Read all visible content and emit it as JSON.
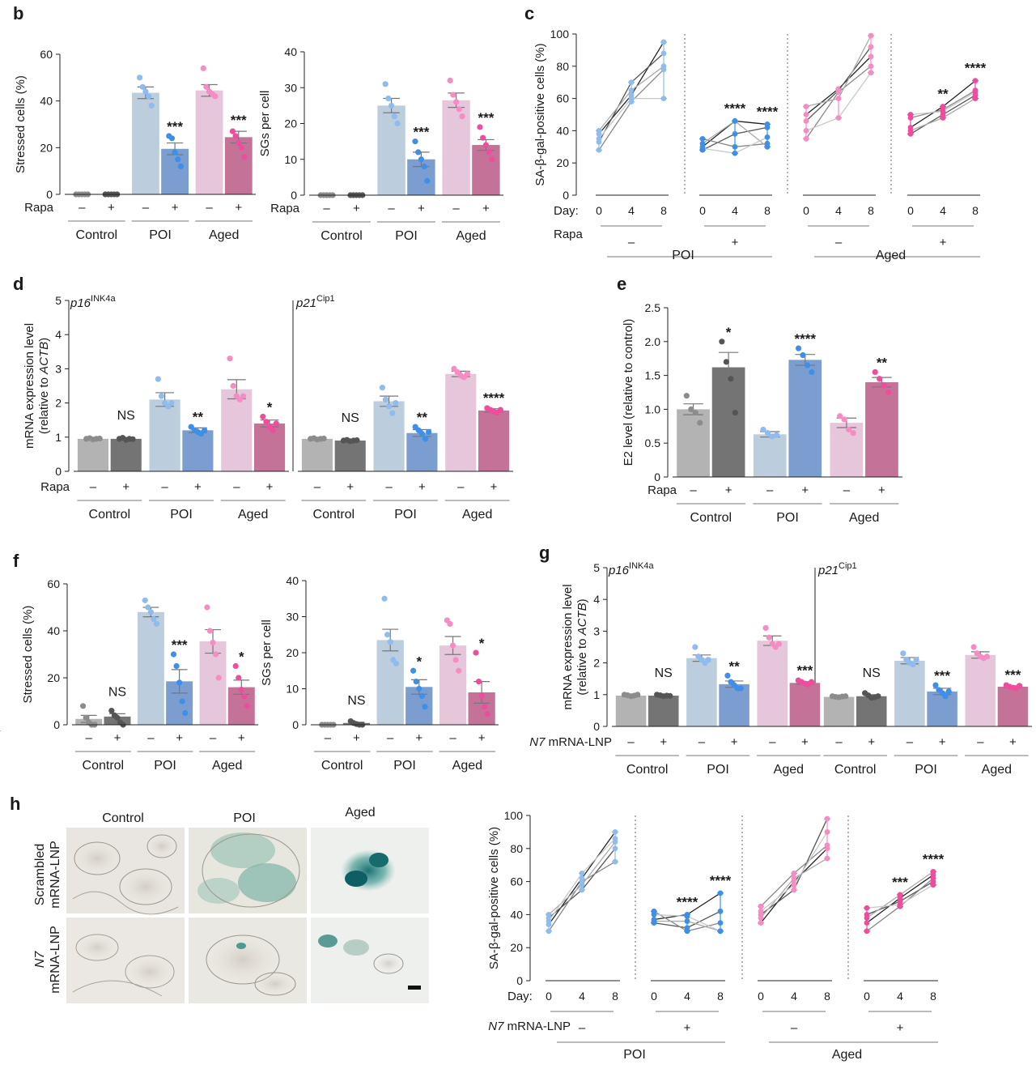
{
  "colors": {
    "ctrl_off": "#b3b3b3",
    "ctrl_on": "#747474",
    "poi_off": "#bccddd",
    "poi_on": "#7b9dcf",
    "aged_off": "#e6c6da",
    "aged_on": "#c47297",
    "dot_ctrl_off": "#8c8c8c",
    "dot_ctrl_on": "#555555",
    "dot_poi_off": "#8fbcec",
    "dot_poi_on": "#3d8fe8",
    "dot_aged_off": "#f58cc3",
    "dot_aged_on": "#ee4d9e"
  },
  "common": {
    "rapa": "Rapa",
    "minus": "–",
    "plus": "+",
    "control": "Control",
    "poi": "POI",
    "aged": "Aged",
    "day": "Day:",
    "n7": "N7",
    "mrna_lnp": "mRNA-LNP",
    "n7_full_rest": " mRNA-LNP"
  },
  "panels": {
    "b": "b",
    "c": "c",
    "d": "d",
    "e": "e",
    "f": "f",
    "g": "g",
    "h": "h"
  },
  "panel_h": {
    "col_control": "Control",
    "col_poi": "POI",
    "col_aged": "Aged",
    "row1_a": "Scrambled",
    "row1_b": "mRNA-LNP",
    "row2_a": "N7",
    "row2_b": "mRNA-LNP"
  },
  "chart_data": [
    {
      "id": "b1",
      "type": "bar",
      "ylabel": "Stressed cells (%)",
      "ylim": [
        0,
        60
      ],
      "yticks": [
        0,
        20,
        40,
        60
      ],
      "treatment": "Rapa",
      "categories": [
        "Control –",
        "Control +",
        "POI –",
        "POI +",
        "Aged –",
        "Aged +"
      ],
      "values": [
        0,
        0,
        43.5,
        19.5,
        44.5,
        24.5
      ],
      "errors": [
        0,
        0,
        2.5,
        2.5,
        2.5,
        2.5
      ],
      "points": [
        [
          0,
          0,
          0,
          0,
          0
        ],
        [
          0,
          0,
          0,
          0,
          0
        ],
        [
          50,
          46,
          44,
          42,
          38
        ],
        [
          25,
          24,
          18,
          15,
          12
        ],
        [
          54,
          46,
          44,
          43,
          42
        ],
        [
          27,
          25,
          22,
          20,
          16
        ]
      ],
      "significance": [
        "",
        "",
        "",
        "***",
        "",
        "***"
      ]
    },
    {
      "id": "b2",
      "type": "bar",
      "ylabel": "SGs per cell",
      "ylim": [
        0,
        40
      ],
      "yticks": [
        0,
        10,
        20,
        30,
        40
      ],
      "treatment": "Rapa",
      "categories": [
        "Control –",
        "Control +",
        "POI –",
        "POI +",
        "Aged –",
        "Aged +"
      ],
      "values": [
        0,
        0,
        25,
        10,
        26.5,
        14
      ],
      "errors": [
        0,
        0,
        2,
        2,
        2,
        1.5
      ],
      "points": [
        [
          0,
          0,
          0,
          0,
          0
        ],
        [
          0,
          0,
          0,
          0,
          0
        ],
        [
          31,
          27,
          25,
          22,
          20
        ],
        [
          15,
          12,
          10,
          8,
          4
        ],
        [
          32,
          28,
          26,
          24,
          22
        ],
        [
          19,
          16,
          14,
          12,
          10
        ]
      ],
      "significance": [
        "",
        "",
        "",
        "***",
        "",
        "***"
      ]
    },
    {
      "id": "c",
      "type": "line",
      "ylabel": "SA-β-gal-positive cells (%)",
      "ylim": [
        0,
        100
      ],
      "yticks": [
        0,
        20,
        40,
        60,
        80,
        100
      ],
      "x": [
        0,
        4,
        8
      ],
      "treatment": "Rapa",
      "groups": [
        {
          "name": "POI –",
          "series": [
            [
              38,
              62,
              95
            ],
            [
              33,
              70,
              88
            ],
            [
              28,
              58,
              78
            ],
            [
              40,
              65,
              80
            ],
            [
              35,
              60,
              60
            ]
          ],
          "significance": [
            "",
            "",
            ""
          ]
        },
        {
          "name": "POI +",
          "series": [
            [
              30,
              46,
              44
            ],
            [
              28,
              38,
              42
            ],
            [
              35,
              30,
              32
            ],
            [
              32,
              46,
              30
            ],
            [
              29,
              26,
              36
            ]
          ],
          "significance": [
            "",
            "****",
            "****"
          ]
        },
        {
          "name": "Aged –",
          "series": [
            [
              50,
              66,
              86
            ],
            [
              46,
              65,
              92
            ],
            [
              35,
              64,
              80
            ],
            [
              55,
              60,
              99
            ],
            [
              40,
              48,
              76
            ]
          ],
          "significance": [
            "",
            "",
            ""
          ]
        },
        {
          "name": "Aged +",
          "series": [
            [
              42,
              55,
              71
            ],
            [
              38,
              50,
              62
            ],
            [
              48,
              53,
              65
            ],
            [
              40,
              48,
              60
            ],
            [
              50,
              52,
              64
            ]
          ],
          "significance": [
            "",
            "**",
            "****"
          ]
        }
      ],
      "group_labels": [
        "POI",
        "Aged"
      ]
    },
    {
      "id": "d",
      "type": "bar",
      "ylabel": "mRNA expression level",
      "ylabel2": "(relative to ACTB)",
      "ylabel2_pre": "(relative to ",
      "ylabel2_it": "ACTB",
      "ylabel2_post": ")",
      "ylim": [
        0,
        5
      ],
      "yticks": [
        0,
        1,
        2,
        3,
        4,
        5
      ],
      "treatment": "Rapa",
      "subpanels": [
        {
          "gene": "p16",
          "sup": "INK4a",
          "categories": [
            "Control –",
            "Control +",
            "POI –",
            "POI +",
            "Aged –",
            "Aged +"
          ],
          "values": [
            0.95,
            0.95,
            2.1,
            1.2,
            2.4,
            1.4
          ],
          "errors": [
            0.03,
            0.04,
            0.2,
            0.07,
            0.28,
            0.1
          ],
          "points": [
            [
              0.95,
              0.97,
              0.93,
              0.95,
              0.96
            ],
            [
              0.95,
              0.98,
              0.92,
              0.95,
              0.94
            ],
            [
              2.7,
              2.2,
              2.0,
              1.9,
              2.0
            ],
            [
              1.3,
              1.2,
              1.15,
              1.1,
              1.2
            ],
            [
              3.3,
              2.5,
              2.2,
              2.1,
              2.2
            ],
            [
              1.6,
              1.45,
              1.3,
              1.2,
              1.4
            ]
          ],
          "significance": [
            "",
            "NS",
            "",
            "**",
            "",
            "*"
          ]
        },
        {
          "gene": "p21",
          "sup": "Cip1",
          "categories": [
            "Control –",
            "Control +",
            "POI –",
            "POI +",
            "Aged –",
            "Aged +"
          ],
          "values": [
            0.95,
            0.9,
            2.05,
            1.12,
            2.85,
            1.78
          ],
          "errors": [
            0.02,
            0.02,
            0.15,
            0.1,
            0.08,
            0.05
          ],
          "points": [
            [
              0.95,
              0.97,
              0.93,
              0.95,
              0.96
            ],
            [
              0.9,
              0.92,
              0.88,
              0.9,
              0.91
            ],
            [
              2.45,
              2.1,
              1.9,
              1.7,
              2.0
            ],
            [
              1.3,
              1.2,
              1.1,
              0.95,
              1.15
            ],
            [
              3.0,
              2.9,
              2.8,
              2.75,
              2.85
            ],
            [
              1.85,
              1.8,
              1.75,
              1.72,
              1.8
            ]
          ],
          "significance": [
            "",
            "NS",
            "",
            "**",
            "",
            "****"
          ]
        }
      ]
    },
    {
      "id": "e",
      "type": "bar",
      "ylabel": "E2 level (relative to control)",
      "ylim": [
        0,
        2.5
      ],
      "yticks": [
        0,
        0.5,
        1.0,
        1.5,
        2.0,
        2.5
      ],
      "ytick_labels": [
        "0",
        "0.5",
        "1.0",
        "1.5",
        "2.0",
        "2.5"
      ],
      "treatment": "Rapa",
      "categories": [
        "Control –",
        "Control +",
        "POI –",
        "POI +",
        "Aged –",
        "Aged +"
      ],
      "values": [
        1.0,
        1.62,
        0.63,
        1.73,
        0.8,
        1.4
      ],
      "errors": [
        0.08,
        0.22,
        0.04,
        0.08,
        0.07,
        0.07
      ],
      "points": [
        [
          1.2,
          1.0,
          0.95,
          0.8
        ],
        [
          2.0,
          1.7,
          1.45,
          0.95
        ],
        [
          0.7,
          0.65,
          0.6,
          0.62
        ],
        [
          1.9,
          1.8,
          1.65,
          1.55
        ],
        [
          0.9,
          0.85,
          0.7,
          0.65
        ],
        [
          1.55,
          1.45,
          1.35,
          1.25
        ]
      ],
      "significance": [
        "",
        "*",
        "",
        "****",
        "",
        "**"
      ]
    },
    {
      "id": "f1",
      "type": "bar",
      "ylabel": "Stressed cells (%)",
      "ylim": [
        0,
        60
      ],
      "yticks": [
        0,
        20,
        40,
        60
      ],
      "treatment": "N7 mRNA-LNP",
      "categories": [
        "Control –",
        "Control +",
        "POI –",
        "POI +",
        "Aged –",
        "Aged +"
      ],
      "values": [
        2.5,
        3.5,
        48,
        18.5,
        35.5,
        16
      ],
      "errors": [
        1.5,
        1.2,
        2,
        5,
        5,
        3
      ],
      "points": [
        [
          8,
          3,
          1,
          0,
          0
        ],
        [
          6,
          4,
          3,
          1,
          0
        ],
        [
          53,
          50,
          48,
          45,
          43
        ],
        [
          30,
          25,
          18,
          10,
          5
        ],
        [
          50,
          40,
          35,
          30,
          20
        ],
        [
          25,
          20,
          15,
          12,
          8
        ]
      ],
      "significance": [
        "",
        "NS",
        "",
        "***",
        "",
        "*"
      ]
    },
    {
      "id": "f2",
      "type": "bar",
      "ylabel": "SGs per cell",
      "ylim": [
        0,
        40
      ],
      "yticks": [
        0,
        10,
        20,
        30,
        40
      ],
      "treatment": "N7 mRNA-LNP",
      "categories": [
        "Control –",
        "Control +",
        "POI –",
        "POI +",
        "Aged –",
        "Aged +"
      ],
      "values": [
        0,
        0.5,
        23.5,
        10.5,
        22,
        9
      ],
      "errors": [
        0,
        0.2,
        3,
        2,
        2.5,
        3
      ],
      "points": [
        [
          0,
          0,
          0,
          0,
          0
        ],
        [
          1,
          0.5,
          0.2,
          0,
          0
        ],
        [
          35,
          25,
          23,
          18,
          17
        ],
        [
          15,
          12,
          10,
          8,
          5
        ],
        [
          29,
          28,
          22,
          18,
          15
        ],
        [
          20,
          12,
          8,
          5,
          3
        ]
      ],
      "significance": [
        "",
        "NS",
        "",
        "*",
        "",
        "*"
      ]
    },
    {
      "id": "g",
      "type": "bar",
      "ylabel": "mRNA expression level",
      "ylabel2": "(relative to ACTB)",
      "ylabel2_pre": "(relative to ",
      "ylabel2_it": "ACTB",
      "ylabel2_post": ")",
      "ylim": [
        0,
        5
      ],
      "yticks": [
        0,
        1,
        2,
        3,
        4,
        5
      ],
      "treatment": "N7 mRNA-LNP",
      "subpanels": [
        {
          "gene": "p16",
          "sup": "INK4a",
          "categories": [
            "Control –",
            "Control +",
            "POI –",
            "POI +",
            "Aged –",
            "Aged +"
          ],
          "values": [
            0.97,
            0.97,
            2.15,
            1.33,
            2.7,
            1.37
          ],
          "errors": [
            0.03,
            0.03,
            0.1,
            0.1,
            0.15,
            0.04
          ],
          "points": [
            [
              1.0,
              0.98,
              0.95,
              0.97,
              1.0
            ],
            [
              1.0,
              0.98,
              0.95,
              0.97,
              0.96
            ],
            [
              2.5,
              2.2,
              2.1,
              2.0,
              2.1
            ],
            [
              1.6,
              1.4,
              1.3,
              1.2,
              1.2
            ],
            [
              3.1,
              2.8,
              2.6,
              2.5,
              2.6
            ],
            [
              1.45,
              1.4,
              1.35,
              1.32,
              1.4
            ]
          ],
          "significance": [
            "",
            "NS",
            "",
            "**",
            "",
            "***"
          ]
        },
        {
          "gene": "p21",
          "sup": "Cip1",
          "categories": [
            "Control –",
            "Control +",
            "POI –",
            "POI +",
            "Aged –",
            "Aged +"
          ],
          "values": [
            0.93,
            0.95,
            2.07,
            1.1,
            2.25,
            1.25
          ],
          "errors": [
            0.02,
            0.05,
            0.1,
            0.1,
            0.1,
            0.03
          ],
          "points": [
            [
              0.95,
              0.93,
              0.92,
              0.94,
              0.95
            ],
            [
              1.05,
              0.98,
              0.9,
              0.92,
              0.95
            ],
            [
              2.3,
              2.1,
              2.0,
              1.95,
              2.1
            ],
            [
              1.3,
              1.15,
              1.05,
              0.95,
              1.1
            ],
            [
              2.5,
              2.3,
              2.2,
              2.15,
              2.2
            ],
            [
              1.3,
              1.25,
              1.22,
              1.2,
              1.28
            ]
          ],
          "significance": [
            "",
            "NS",
            "",
            "***",
            "",
            "***"
          ]
        }
      ]
    },
    {
      "id": "h",
      "type": "line",
      "ylabel": "SA-β-gal-positive cells (%)",
      "ylim": [
        0,
        100
      ],
      "yticks": [
        0,
        20,
        40,
        60,
        80,
        100
      ],
      "x": [
        0,
        4,
        8
      ],
      "treatment": "N7 mRNA-LNP",
      "groups": [
        {
          "name": "POI –",
          "series": [
            [
              34,
              62,
              90
            ],
            [
              38,
              55,
              80
            ],
            [
              30,
              60,
              72
            ],
            [
              40,
              58,
              84
            ],
            [
              36,
              65,
              86
            ]
          ],
          "significance": [
            "",
            "",
            ""
          ]
        },
        {
          "name": "POI +",
          "series": [
            [
              37,
              40,
              53
            ],
            [
              35,
              32,
              42
            ],
            [
              42,
              30,
              35
            ],
            [
              36,
              36,
              30
            ],
            [
              40,
              39,
              30
            ]
          ],
          "significance": [
            "",
            "****",
            "****"
          ]
        },
        {
          "name": "Aged –",
          "series": [
            [
              35,
              60,
              80
            ],
            [
              40,
              55,
              98
            ],
            [
              45,
              65,
              82
            ],
            [
              38,
              62,
              74
            ],
            [
              42,
              58,
              90
            ]
          ],
          "significance": [
            "",
            "",
            ""
          ]
        },
        {
          "name": "Aged +",
          "series": [
            [
              35,
              50,
              64
            ],
            [
              40,
              48,
              60
            ],
            [
              30,
              45,
              62
            ],
            [
              38,
              52,
              66
            ],
            [
              44,
              46,
              58
            ]
          ],
          "significance": [
            "",
            "***",
            "****"
          ]
        }
      ],
      "group_labels": [
        "POI",
        "Aged"
      ]
    }
  ]
}
